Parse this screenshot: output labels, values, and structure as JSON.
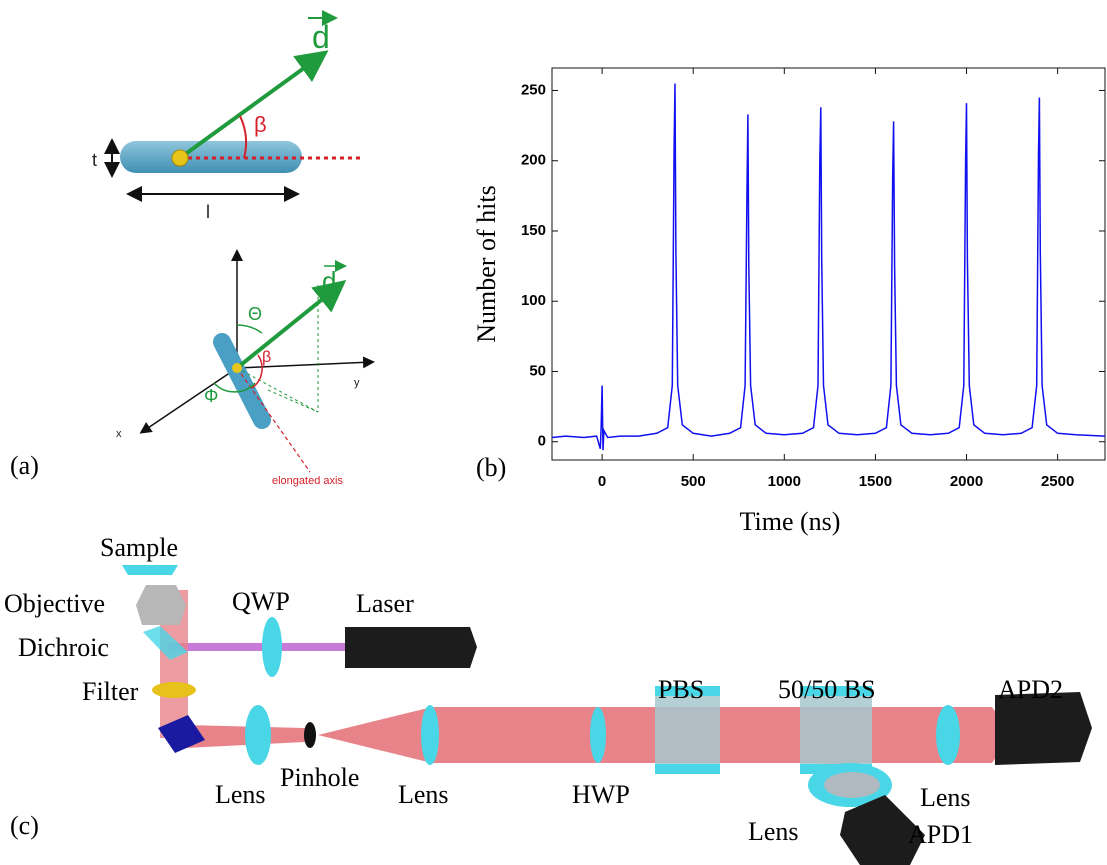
{
  "panel_a": {
    "label": "(a)",
    "vector_top": "d",
    "beta_top": "β",
    "thickness": "t",
    "length": "l",
    "vector_bottom": "d",
    "theta": "Θ",
    "beta_bottom": "β",
    "phi": "Φ",
    "x_axis": "x",
    "y_axis": "y",
    "elongated_axis": "elongated axis"
  },
  "panel_b": {
    "label": "(b)"
  },
  "chart_data": {
    "type": "line",
    "x_label": "Time (ns)",
    "y_label": "Number of hits",
    "x": [
      -275,
      -200,
      -100,
      -30,
      -10,
      -5,
      0,
      5,
      10,
      30,
      100,
      200,
      300,
      360,
      385,
      395,
      400,
      405,
      415,
      440,
      500,
      600,
      700,
      760,
      785,
      795,
      800,
      805,
      815,
      840,
      900,
      1000,
      1100,
      1160,
      1185,
      1195,
      1200,
      1205,
      1215,
      1240,
      1300,
      1400,
      1500,
      1560,
      1585,
      1595,
      1600,
      1605,
      1615,
      1640,
      1700,
      1800,
      1900,
      1960,
      1985,
      1995,
      2000,
      2005,
      2015,
      2040,
      2100,
      2200,
      2300,
      2360,
      2385,
      2395,
      2400,
      2405,
      2415,
      2440,
      2500,
      2600,
      2760
    ],
    "series": [
      {
        "color": "#1010f0",
        "values": [
          3,
          4,
          3,
          4,
          -5,
          12,
          40,
          -6,
          8,
          3,
          4,
          4,
          6,
          10,
          40,
          210,
          255,
          135,
          40,
          12,
          6,
          4,
          6,
          10,
          40,
          180,
          233,
          125,
          40,
          12,
          6,
          5,
          6,
          10,
          40,
          200,
          238,
          130,
          40,
          12,
          6,
          5,
          6,
          10,
          40,
          190,
          228,
          125,
          40,
          12,
          6,
          5,
          6,
          10,
          40,
          200,
          241,
          130,
          40,
          12,
          6,
          5,
          6,
          10,
          40,
          205,
          245,
          135,
          40,
          12,
          6,
          5,
          4
        ]
      }
    ],
    "xlim": [
      -275,
      2760
    ],
    "ylim": [
      -13,
      266
    ],
    "xticks": [
      0,
      500,
      1000,
      1500,
      2000,
      2500
    ],
    "yticks": [
      0,
      50,
      100,
      150,
      200,
      250
    ]
  },
  "panel_c": {
    "label": "(c)",
    "sample": "Sample",
    "objective": "Objective",
    "dichroic": "Dichroic",
    "filter": "Filter",
    "qwp": "QWP",
    "laser": "Laser",
    "lens_1": "Lens",
    "pinhole": "Pinhole",
    "lens_2": "Lens",
    "hwp": "HWP",
    "pbs": "PBS",
    "bs": "50/50 BS",
    "apd2": "APD2",
    "lens_3": "Lens",
    "lens_4": "Lens",
    "apd1": "APD1"
  }
}
